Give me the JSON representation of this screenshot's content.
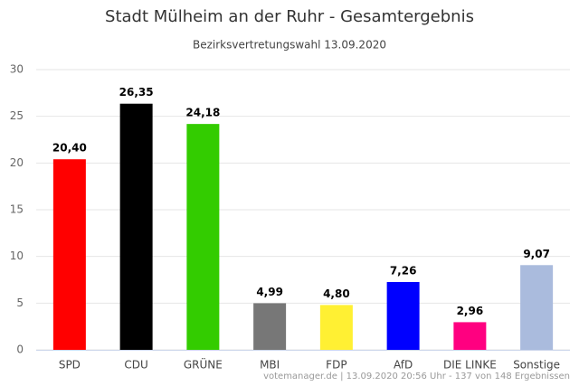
{
  "chart_data": {
    "type": "bar",
    "title": "Stadt Mülheim an der Ruhr - Gesamtergebnis",
    "subtitle": "Bezirksvertretungswahl 13.09.2020",
    "categories": [
      "SPD",
      "CDU",
      "GRÜNE",
      "MBI",
      "FDP",
      "AfD",
      "DIE LINKE",
      "Sonstige"
    ],
    "values": [
      20.4,
      26.35,
      24.18,
      4.99,
      4.8,
      7.26,
      2.96,
      9.07
    ],
    "value_labels": [
      "20,40",
      "26,35",
      "24,18",
      "4,99",
      "4,80",
      "7,26",
      "2,96",
      "9,07"
    ],
    "colors": [
      "#ff0000",
      "#000000",
      "#33cc00",
      "#777777",
      "#fff033",
      "#0000ff",
      "#ff0080",
      "#aabbdd"
    ],
    "ylim": [
      0,
      30
    ],
    "yticks": [
      0,
      5,
      10,
      15,
      20,
      25,
      30
    ],
    "grid": true,
    "credits": "votemanager.de | 13.09.2020 20:56 Uhr - 137 von 148 Ergebnissen"
  }
}
